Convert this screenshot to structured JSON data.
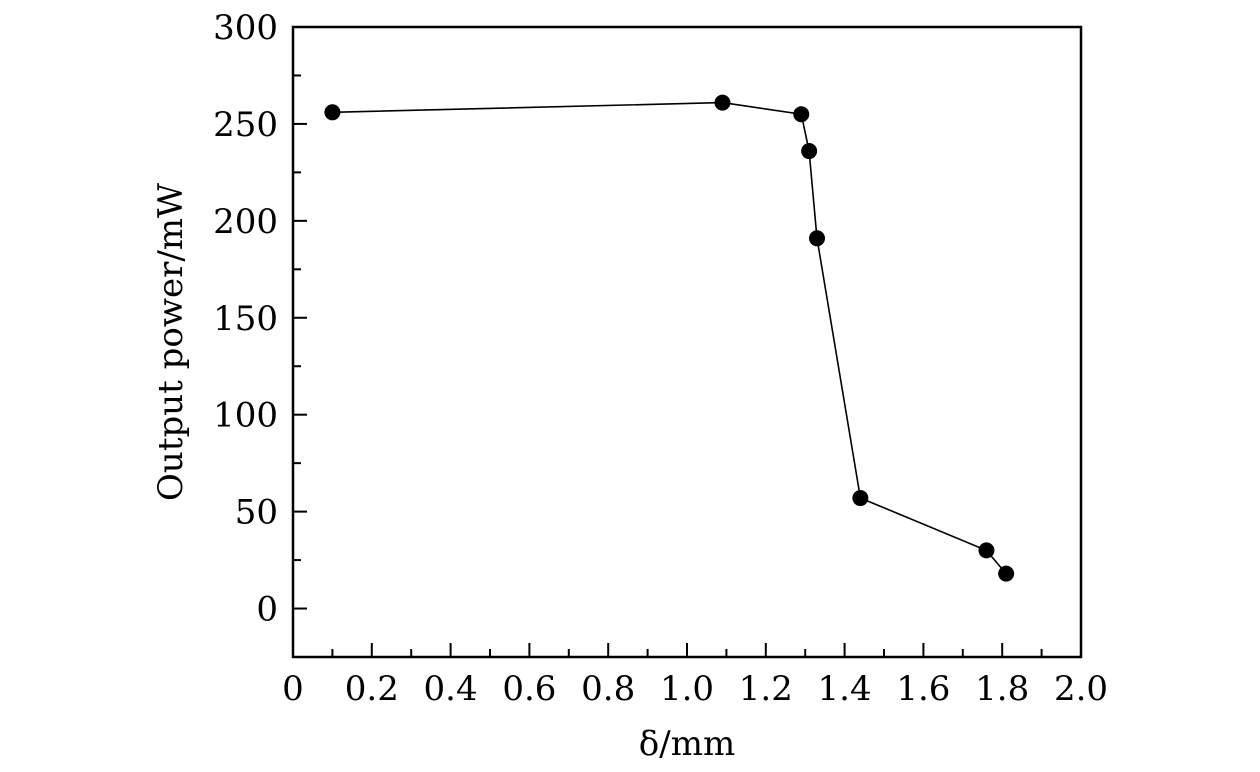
{
  "chart_data": {
    "type": "line",
    "title": "",
    "xlabel": "δ/mm",
    "ylabel": "Output power/mW",
    "xlim": [
      0,
      2.0
    ],
    "ylim": [
      -25,
      300
    ],
    "xticks": [
      0,
      0.2,
      0.4,
      0.6,
      0.8,
      1.0,
      1.2,
      1.4,
      1.6,
      1.8,
      2.0
    ],
    "xtick_labels": [
      "0",
      "0.2",
      "0.4",
      "0.6",
      "0.8",
      "1.0",
      "1.2",
      "1.4",
      "1.6",
      "1.8",
      "2.0"
    ],
    "yticks": [
      0,
      50,
      100,
      150,
      200,
      250,
      300
    ],
    "ytick_labels": [
      "0",
      "50",
      "100",
      "150",
      "200",
      "250",
      "300"
    ],
    "grid": false,
    "legend": "none",
    "series": [
      {
        "marker": "filled-circle",
        "color": "#000000",
        "x": [
          0.1,
          1.09,
          1.29,
          1.31,
          1.33,
          1.44,
          1.76,
          1.81
        ],
        "y": [
          256,
          261,
          255,
          236,
          191,
          57,
          30,
          18
        ]
      }
    ]
  }
}
